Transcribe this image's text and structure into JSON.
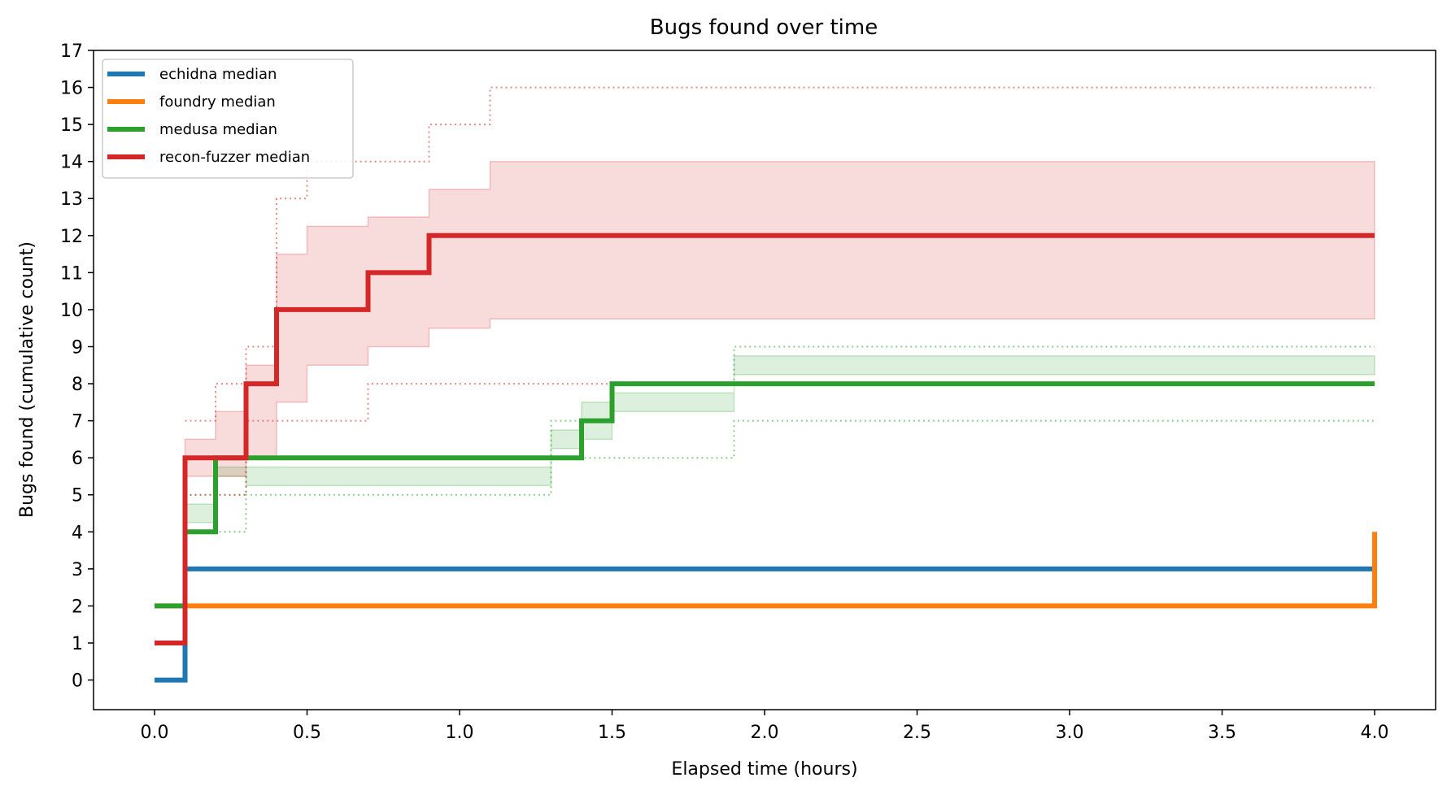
{
  "chart_data": {
    "type": "line",
    "title": "Bugs found over time",
    "xlabel": "Elapsed time (hours)",
    "ylabel": "Bugs found (cumulative count)",
    "xlim": [
      -0.2,
      4.2
    ],
    "ylim": [
      -0.8,
      17
    ],
    "xticks": [
      "0.0",
      "0.5",
      "1.0",
      "1.5",
      "2.0",
      "2.5",
      "3.0",
      "3.5",
      "4.0"
    ],
    "xtick_values": [
      0,
      0.5,
      1,
      1.5,
      2,
      2.5,
      3,
      3.5,
      4
    ],
    "yticks": [
      "0",
      "1",
      "2",
      "3",
      "4",
      "5",
      "6",
      "7",
      "8",
      "9",
      "10",
      "11",
      "12",
      "13",
      "14",
      "15",
      "16",
      "17"
    ],
    "ytick_values": [
      0,
      1,
      2,
      3,
      4,
      5,
      6,
      7,
      8,
      9,
      10,
      11,
      12,
      13,
      14,
      15,
      16,
      17
    ],
    "grid": false,
    "legend_placement": "top-left",
    "series": [
      {
        "name": "echidna median",
        "color": "#1f77b4",
        "x": [
          0,
          0.1,
          4.0
        ],
        "y": [
          0,
          3,
          3
        ]
      },
      {
        "name": "foundry median",
        "color": "#ff7f0e",
        "x": [
          0,
          0.1,
          4.0
        ],
        "y": [
          2,
          2,
          4
        ]
      },
      {
        "name": "medusa median",
        "color": "#2ca02c",
        "x": [
          0,
          0.1,
          0.2,
          1.4,
          1.5,
          4.0
        ],
        "y": [
          2,
          4,
          6,
          7,
          8,
          8
        ],
        "band": {
          "x": [
            0.1,
            0.2,
            0.3,
            1.2,
            1.3,
            1.4,
            1.5,
            1.9,
            4.0
          ],
          "lower": [
            4.25,
            5.5,
            5.25,
            5.25,
            6.25,
            6.5,
            7.25,
            8.25,
            8.25
          ],
          "upper": [
            4.75,
            5.75,
            5.75,
            5.75,
            6.75,
            7.5,
            7.75,
            8.75,
            8.75
          ]
        },
        "range": {
          "x": [
            0.1,
            0.3,
            1.2,
            1.3,
            1.5,
            1.9,
            4.0
          ],
          "min": [
            4,
            5,
            5,
            6,
            6,
            7,
            7
          ],
          "max": [
            5,
            6,
            6,
            7,
            8,
            9,
            9
          ]
        }
      },
      {
        "name": "recon-fuzzer median",
        "color": "#d62728",
        "x": [
          0,
          0.1,
          0.3,
          0.4,
          0.7,
          0.9,
          4.0
        ],
        "y": [
          1,
          6,
          8,
          10,
          11,
          12,
          12
        ],
        "band": {
          "x": [
            0.1,
            0.2,
            0.3,
            0.4,
            0.5,
            0.7,
            0.9,
            1.1,
            4.0
          ],
          "lower": [
            5.5,
            5.5,
            6.0,
            7.5,
            8.5,
            9.0,
            9.5,
            9.75,
            10.0
          ],
          "upper": [
            6.5,
            7.25,
            8.5,
            11.5,
            12.25,
            12.5,
            13.25,
            14.0,
            14.0
          ]
        },
        "range": {
          "x": [
            0.1,
            0.2,
            0.3,
            0.4,
            0.5,
            0.7,
            0.9,
            1.1,
            4.0
          ],
          "min": [
            5,
            5,
            7,
            7,
            7,
            8,
            8,
            8,
            8
          ],
          "max": [
            7,
            8,
            9,
            13,
            14,
            14,
            15,
            16,
            16
          ]
        }
      }
    ]
  }
}
